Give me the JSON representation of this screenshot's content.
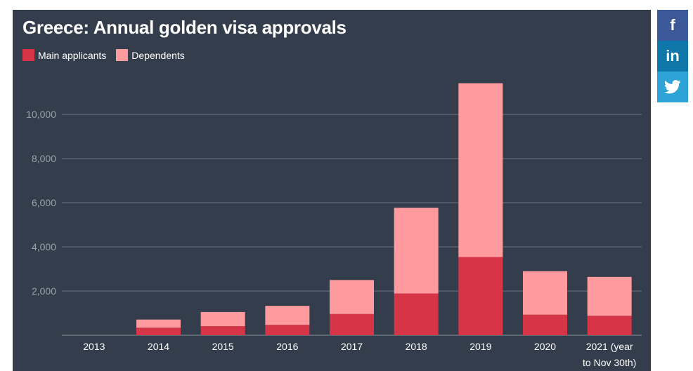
{
  "chart_data": {
    "type": "bar",
    "stacked": true,
    "title": "Greece: Annual golden visa approvals",
    "categories": [
      "2013",
      "2014",
      "2015",
      "2016",
      "2017",
      "2018",
      "2019",
      "2020",
      "2021 (year to Nov 30th)"
    ],
    "category_lines": [
      [
        "2013"
      ],
      [
        "2014"
      ],
      [
        "2015"
      ],
      [
        "2016"
      ],
      [
        "2017"
      ],
      [
        "2018"
      ],
      [
        "2019"
      ],
      [
        "2020"
      ],
      [
        "2021 (year",
        "to Nov 30th)"
      ]
    ],
    "series": [
      {
        "name": "Main applicants",
        "color": "#d63447",
        "values": [
          0,
          340,
          410,
          470,
          960,
          1890,
          3540,
          930,
          880
        ]
      },
      {
        "name": "Dependents",
        "color": "#ff9a9e",
        "values": [
          0,
          370,
          640,
          860,
          1540,
          3880,
          7870,
          1970,
          1760
        ]
      }
    ],
    "ylim": [
      0,
      11400
    ],
    "yticks": [
      2000,
      4000,
      6000,
      8000,
      10000
    ],
    "ytick_labels": [
      "2,000",
      "4,000",
      "6,000",
      "8,000",
      "10,000"
    ],
    "grid": true,
    "legend_position": "top-left",
    "xlabel": "",
    "ylabel": ""
  },
  "colors": {
    "background": "#333d4b",
    "grid": "#6b7482",
    "axis_text": "#9aa2ad",
    "category_text": "#ffffff"
  },
  "social": {
    "facebook": {
      "icon": "facebook-icon",
      "glyph": "f",
      "color": "#3b5998"
    },
    "linkedin": {
      "icon": "linkedin-icon",
      "glyph": "in",
      "color": "#0e76a8"
    },
    "twitter": {
      "icon": "twitter-icon",
      "glyph": "🐦",
      "color": "#2ea3d6"
    }
  }
}
